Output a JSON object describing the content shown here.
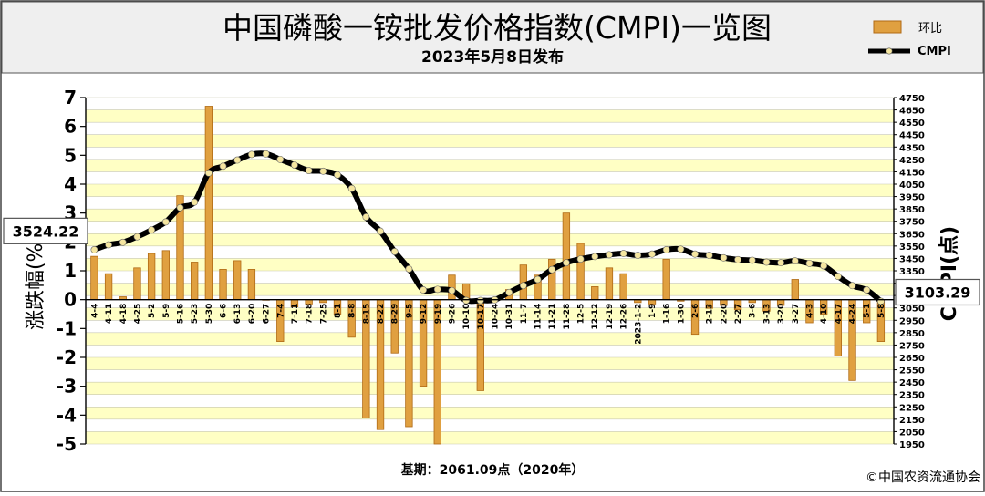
{
  "header": {
    "title": "中国磷酸一铵批发价格指数(CMPI)一览图",
    "subtitle": "2023年5月8日发布"
  },
  "legend": {
    "bar_label": "环比",
    "line_label": "CMPI"
  },
  "footer": {
    "base_note": "基期：2061.09点（2020年）",
    "copyright": "©中国农资流通协会"
  },
  "colors": {
    "bar": "#E0A040",
    "bar_edge": "#B06A15",
    "line": "#000000",
    "marker": "#F5E6A0",
    "band": "#FFFFC4",
    "header_bg": "#EFEFEF"
  },
  "chart_data": {
    "type": "bar+line",
    "categories": [
      "4-4",
      "4-11",
      "4-18",
      "4-25",
      "5-2",
      "5-9",
      "5-16",
      "5-23",
      "5-30",
      "6-6",
      "6-13",
      "6-20",
      "6-27",
      "7-4",
      "7-11",
      "7-18",
      "7-25",
      "8-1",
      "8-8",
      "8-15",
      "8-22",
      "8-29",
      "9-5",
      "9-12",
      "9-19",
      "9-26",
      "10-10",
      "10-17",
      "10-24",
      "10-31",
      "11-7",
      "11-14",
      "11-21",
      "11-28",
      "12-5",
      "12-12",
      "12-19",
      "12-26",
      "2023-1-2",
      "1-9",
      "1-16",
      "1-30",
      "2-6",
      "2-13",
      "2-20",
      "2-27",
      "3-6",
      "3-13",
      "3-20",
      "3-27",
      "4-3",
      "4-10",
      "4-17",
      "4-24",
      "5-1",
      "5-8"
    ],
    "series": [
      {
        "name": "环比",
        "axis": "left",
        "values": [
          1.5,
          0.9,
          0.1,
          1.1,
          1.6,
          1.7,
          3.6,
          1.3,
          6.7,
          1.05,
          1.35,
          1.05,
          0.0,
          -1.45,
          -0.25,
          -0.15,
          -0.1,
          -0.5,
          -1.3,
          -4.1,
          -4.5,
          -1.85,
          -4.4,
          -3.0,
          -5.0,
          0.85,
          0.55,
          -3.15,
          0.05,
          0.35,
          1.2,
          0.85,
          1.4,
          3.0,
          1.95,
          0.45,
          1.1,
          0.9,
          -0.1,
          -0.15,
          1.4,
          -0.05,
          -1.2,
          -0.3,
          -0.2,
          -0.35,
          -0.1,
          -0.4,
          -0.2,
          0.7,
          -0.8,
          -0.5,
          -1.95,
          -2.8,
          -0.8,
          -1.45
        ]
      },
      {
        "name": "CMPI",
        "axis": "right",
        "values": [
          3520,
          3560,
          3580,
          3625,
          3680,
          3745,
          3860,
          3905,
          4140,
          4195,
          4245,
          4290,
          4295,
          4250,
          4205,
          4160,
          4155,
          4125,
          4015,
          3785,
          3670,
          3505,
          3365,
          3195,
          3200,
          3190,
          3110,
          3110,
          3115,
          3175,
          3230,
          3280,
          3360,
          3415,
          3445,
          3465,
          3480,
          3490,
          3475,
          3485,
          3520,
          3525,
          3485,
          3475,
          3455,
          3440,
          3435,
          3420,
          3415,
          3430,
          3410,
          3390,
          3305,
          3230,
          3195,
          3103.29
        ]
      }
    ],
    "ylim_left": [
      -5,
      7
    ],
    "ylabel_left": "涨跌幅(%)",
    "left_ticks": [
      -5,
      -4,
      -3,
      -2,
      -1,
      0,
      1,
      2,
      3,
      4,
      5,
      6,
      7
    ],
    "ylim_right": [
      1950,
      4750
    ],
    "ylabel_right": "CMPI(点)",
    "right_ticks": [
      1950,
      2050,
      2150,
      2250,
      2350,
      2450,
      2550,
      2650,
      2750,
      2850,
      2950,
      3050,
      3150,
      3250,
      3350,
      3450,
      3550,
      3650,
      3750,
      3850,
      3950,
      4050,
      4150,
      4250,
      4350,
      4450,
      4550,
      4650,
      4750
    ],
    "callouts": [
      {
        "label": "3524.22",
        "value": 3524.22,
        "side": "left"
      },
      {
        "label": "3103.29",
        "value": 3103.29,
        "side": "right"
      }
    ]
  }
}
